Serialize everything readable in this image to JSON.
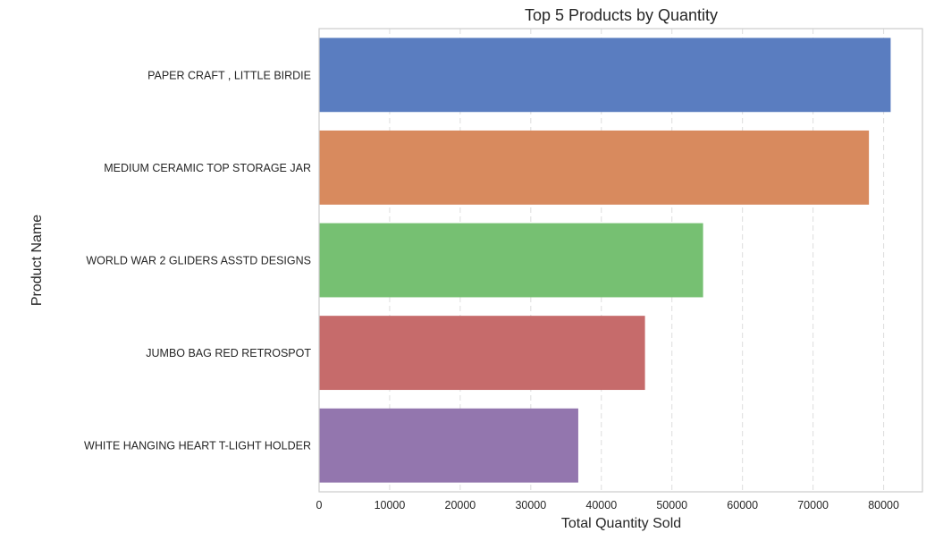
{
  "chart_data": {
    "type": "bar",
    "orientation": "horizontal",
    "title": "Top 5 Products by Quantity",
    "xlabel": "Total Quantity Sold",
    "ylabel": "Product Name",
    "categories": [
      "PAPER CRAFT , LITTLE BIRDIE",
      "MEDIUM CERAMIC TOP STORAGE JAR",
      "WORLD WAR 2 GLIDERS ASSTD DESIGNS",
      "JUMBO BAG RED RETROSPOT",
      "WHITE HANGING HEART T-LIGHT HOLDER"
    ],
    "values": [
      80995,
      77916,
      54415,
      46181,
      36725
    ],
    "colors": [
      "#5a7dc0",
      "#d88a5e",
      "#76c072",
      "#c66b6b",
      "#9376ae"
    ],
    "xlim": [
      0,
      85500
    ],
    "xticks": [
      0,
      10000,
      20000,
      30000,
      40000,
      50000,
      60000,
      70000,
      80000
    ],
    "xtick_labels": [
      "0",
      "10000",
      "20000",
      "30000",
      "40000",
      "50000",
      "60000",
      "70000",
      "80000"
    ],
    "grid": "x-dashed",
    "legend": "none"
  }
}
